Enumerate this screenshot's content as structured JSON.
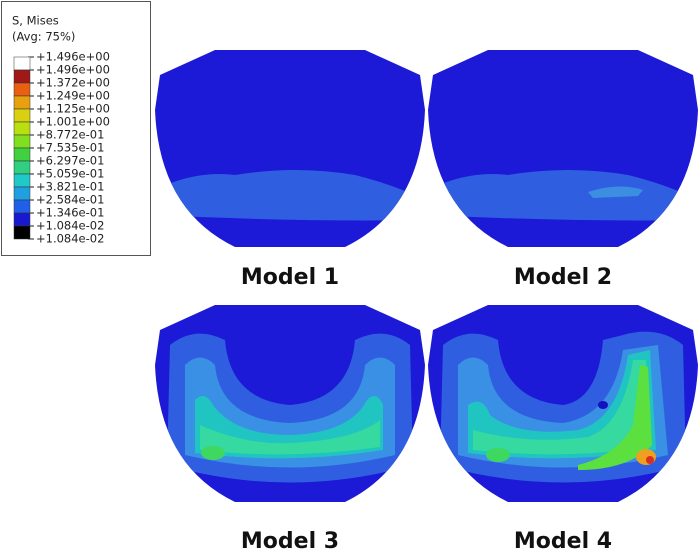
{
  "legend": {
    "title": "S, Mises",
    "subtitle": "(Avg: 75%)",
    "labels": [
      "+1.496e+00",
      "+1.496e+00",
      "+1.372e+00",
      "+1.249e+00",
      "+1.125e+00",
      "+1.001e+00",
      "+8.772e-01",
      "+7.535e-01",
      "+6.297e-01",
      "+5.059e-01",
      "+3.821e-01",
      "+2.584e-01",
      "+1.346e-01",
      "+1.084e-02",
      "+1.084e-02"
    ]
  },
  "models": [
    {
      "label": "Model 1"
    },
    {
      "label": "Model 2"
    },
    {
      "label": "Model 3"
    },
    {
      "label": "Model 4"
    }
  ]
}
